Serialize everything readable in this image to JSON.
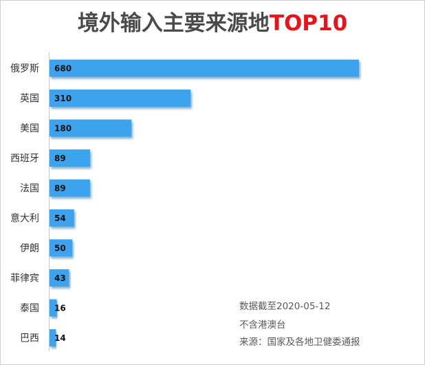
{
  "title": {
    "main": "境外输入主要来源地",
    "accent": "TOP10"
  },
  "notes": {
    "date": "数据截至2020-05-12",
    "scope": "不含港澳台",
    "source": "来源：国家及各地卫健委通报"
  },
  "colors": {
    "bar": "#3ea3ee",
    "bar_shadow": "#2b6fa3",
    "accent": "#e8141b",
    "title": "#4a4a4a"
  },
  "chart_data": {
    "type": "bar",
    "orientation": "horizontal",
    "categories": [
      "俄罗斯",
      "英国",
      "美国",
      "西班牙",
      "法国",
      "意大利",
      "伊朗",
      "菲律宾",
      "泰国",
      "巴西"
    ],
    "values": [
      680,
      310,
      180,
      89,
      89,
      54,
      50,
      43,
      16,
      14
    ],
    "title": "境外输入主要来源地TOP10",
    "xlabel": "",
    "ylabel": "",
    "xlim": [
      0,
      680
    ],
    "grid": false,
    "legend": "none"
  }
}
